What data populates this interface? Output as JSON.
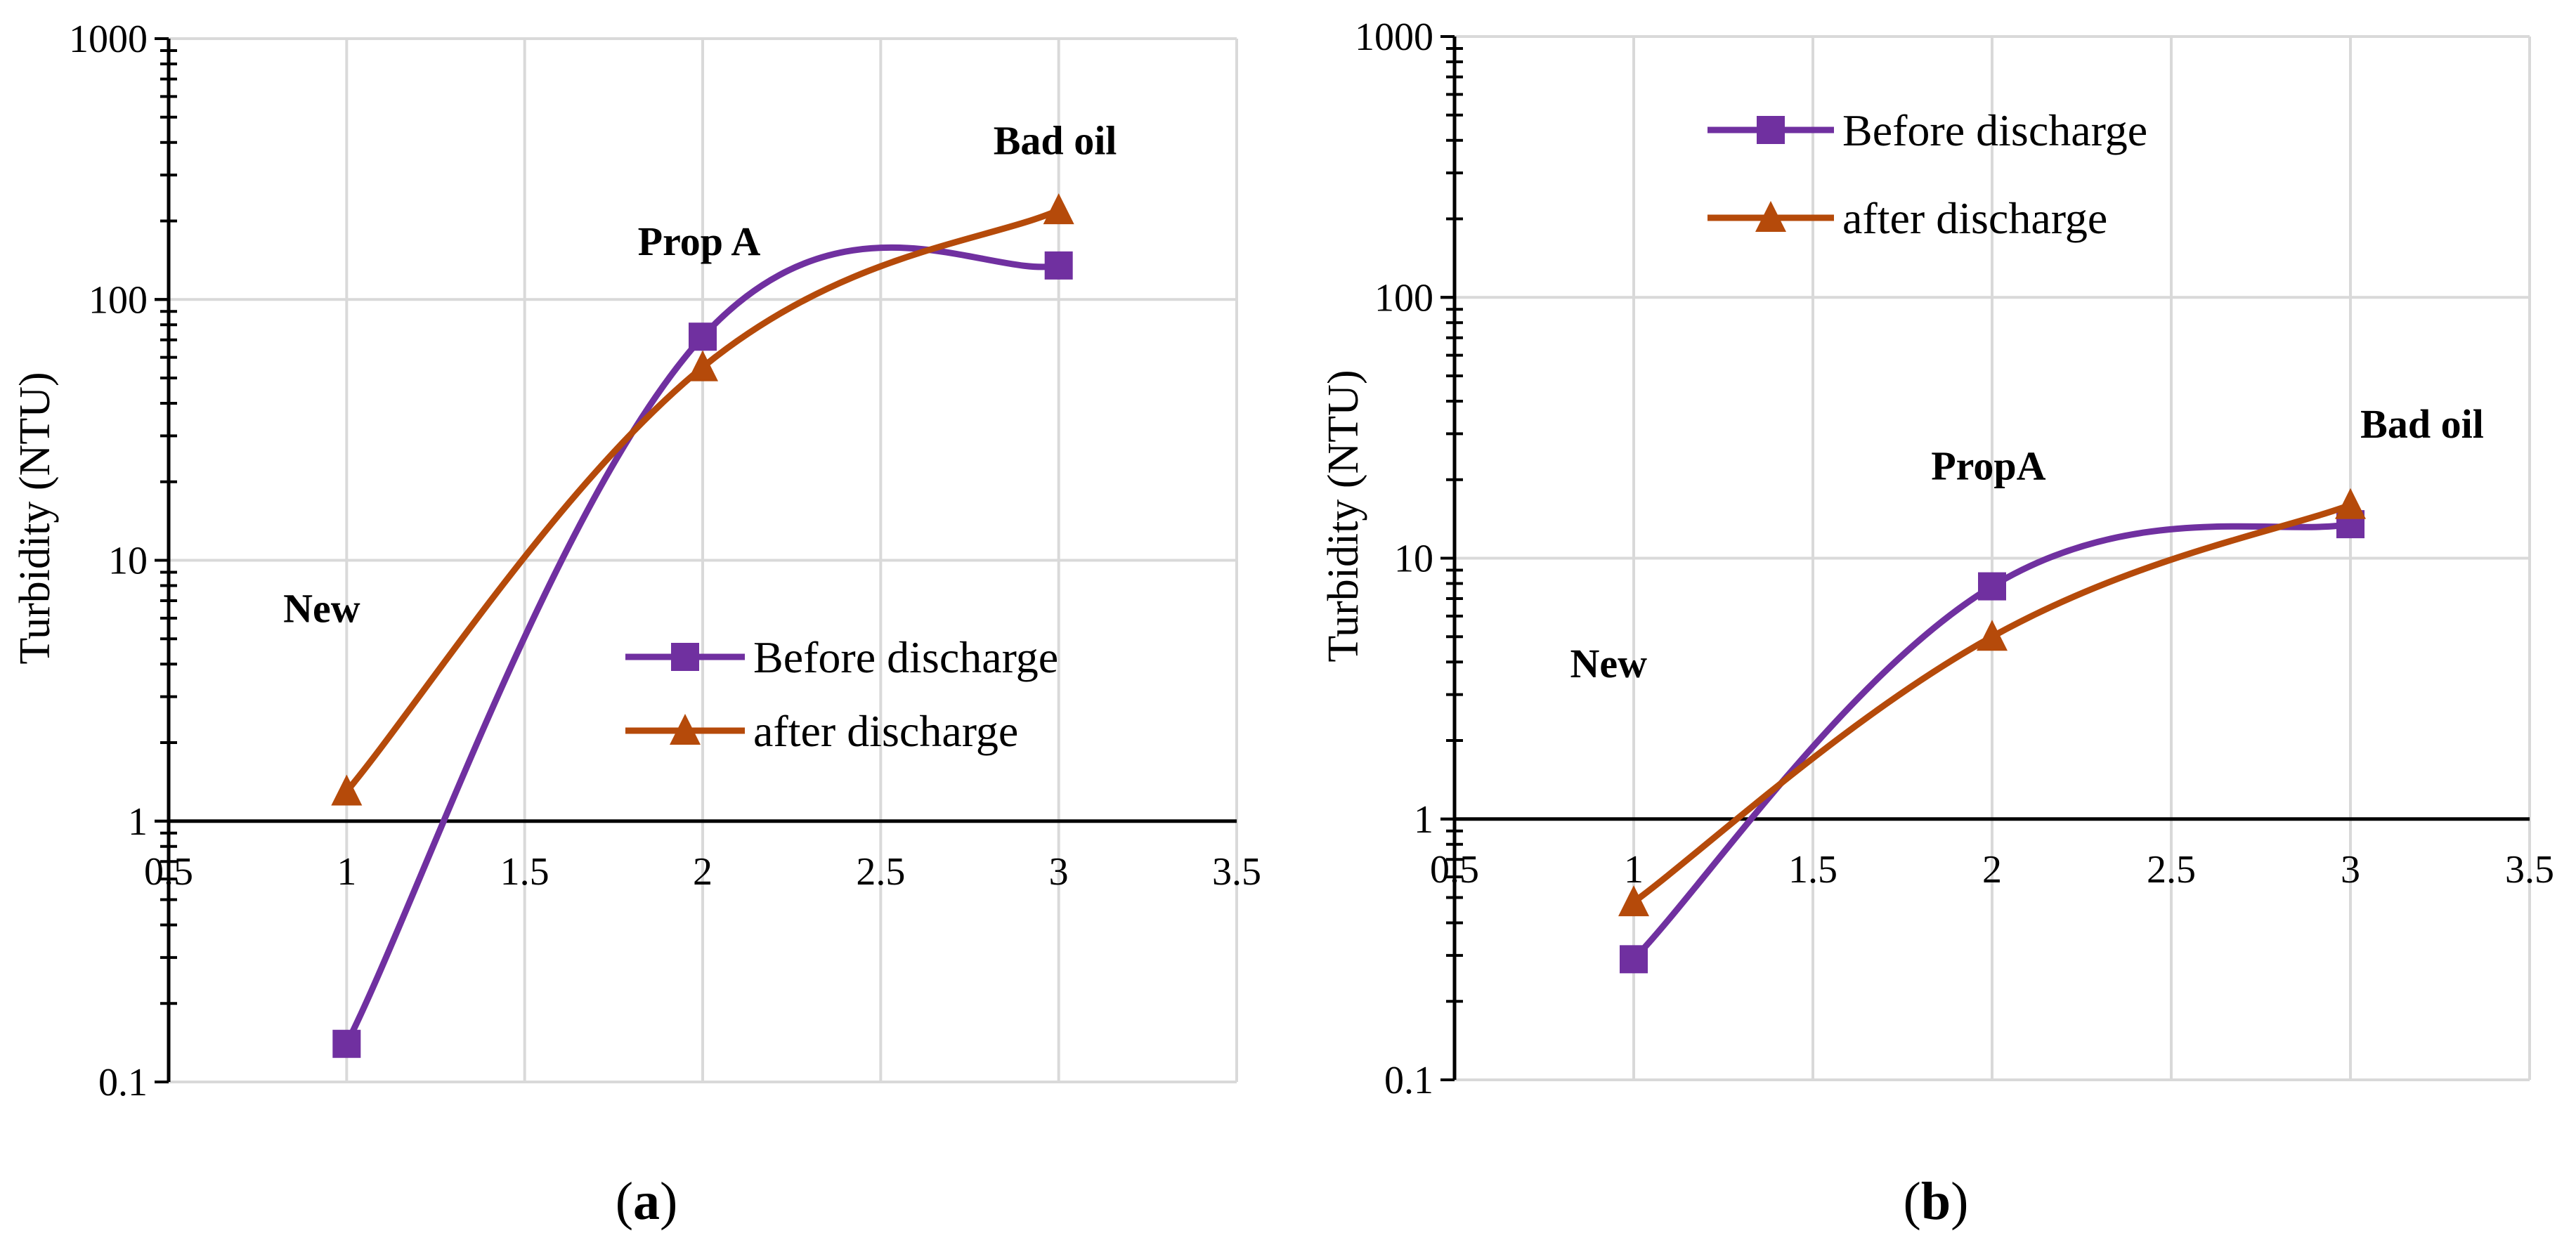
{
  "chart_data": [
    {
      "type": "line",
      "panel_label": "a",
      "ylabel": "Turbidity (NTU)",
      "xlabel": "",
      "y_scale": "log",
      "xlim": [
        0.5,
        3.5
      ],
      "ylim": [
        0.1,
        1000
      ],
      "x_ticks": [
        "0.5",
        "1",
        "1.5",
        "2",
        "2.5",
        "3",
        "3.5"
      ],
      "y_ticks": [
        "0.1",
        "1",
        "10",
        "100",
        "1000"
      ],
      "x_axis_crosses_at_y": 1,
      "grid": true,
      "legend_position": "center-right",
      "series": [
        {
          "name": "Before discharge",
          "color": "#7030a0",
          "marker": "square",
          "x": [
            1,
            2,
            3
          ],
          "y": [
            0.14,
            72,
            135
          ]
        },
        {
          "name": "after discharge",
          "color": "#b54a0a",
          "marker": "triangle",
          "x": [
            1,
            2,
            3
          ],
          "y": [
            1.3,
            55,
            220
          ]
        }
      ],
      "annotations": [
        {
          "text": "New",
          "x": 0.93,
          "y": 5.8
        },
        {
          "text": "Prop A",
          "x": 1.99,
          "y": 148
        },
        {
          "text": "Bad oil",
          "x": 2.99,
          "y": 360
        }
      ]
    },
    {
      "type": "line",
      "panel_label": "b",
      "ylabel": "Turbidity (NTU)",
      "xlabel": "",
      "y_scale": "log",
      "xlim": [
        0.5,
        3.5
      ],
      "ylim": [
        0.1,
        1000
      ],
      "x_ticks": [
        "0.5",
        "1",
        "1.5",
        "2",
        "2.5",
        "3",
        "3.5"
      ],
      "y_ticks": [
        "0.1",
        "1",
        "10",
        "100",
        "1000"
      ],
      "x_axis_crosses_at_y": 1,
      "grid": true,
      "legend_position": "top-left",
      "series": [
        {
          "name": "Before discharge",
          "color": "#7030a0",
          "marker": "square",
          "x": [
            1,
            2,
            3
          ],
          "y": [
            0.29,
            7.8,
            13.5
          ]
        },
        {
          "name": "after discharge",
          "color": "#b54a0a",
          "marker": "triangle",
          "x": [
            1,
            2,
            3
          ],
          "y": [
            0.48,
            5.0,
            16
          ]
        }
      ],
      "annotations": [
        {
          "text": "New",
          "x": 0.93,
          "y": 3.5
        },
        {
          "text": "PropA",
          "x": 1.99,
          "y": 20
        },
        {
          "text": "Bad oil",
          "x": 3.2,
          "y": 29
        }
      ]
    }
  ]
}
